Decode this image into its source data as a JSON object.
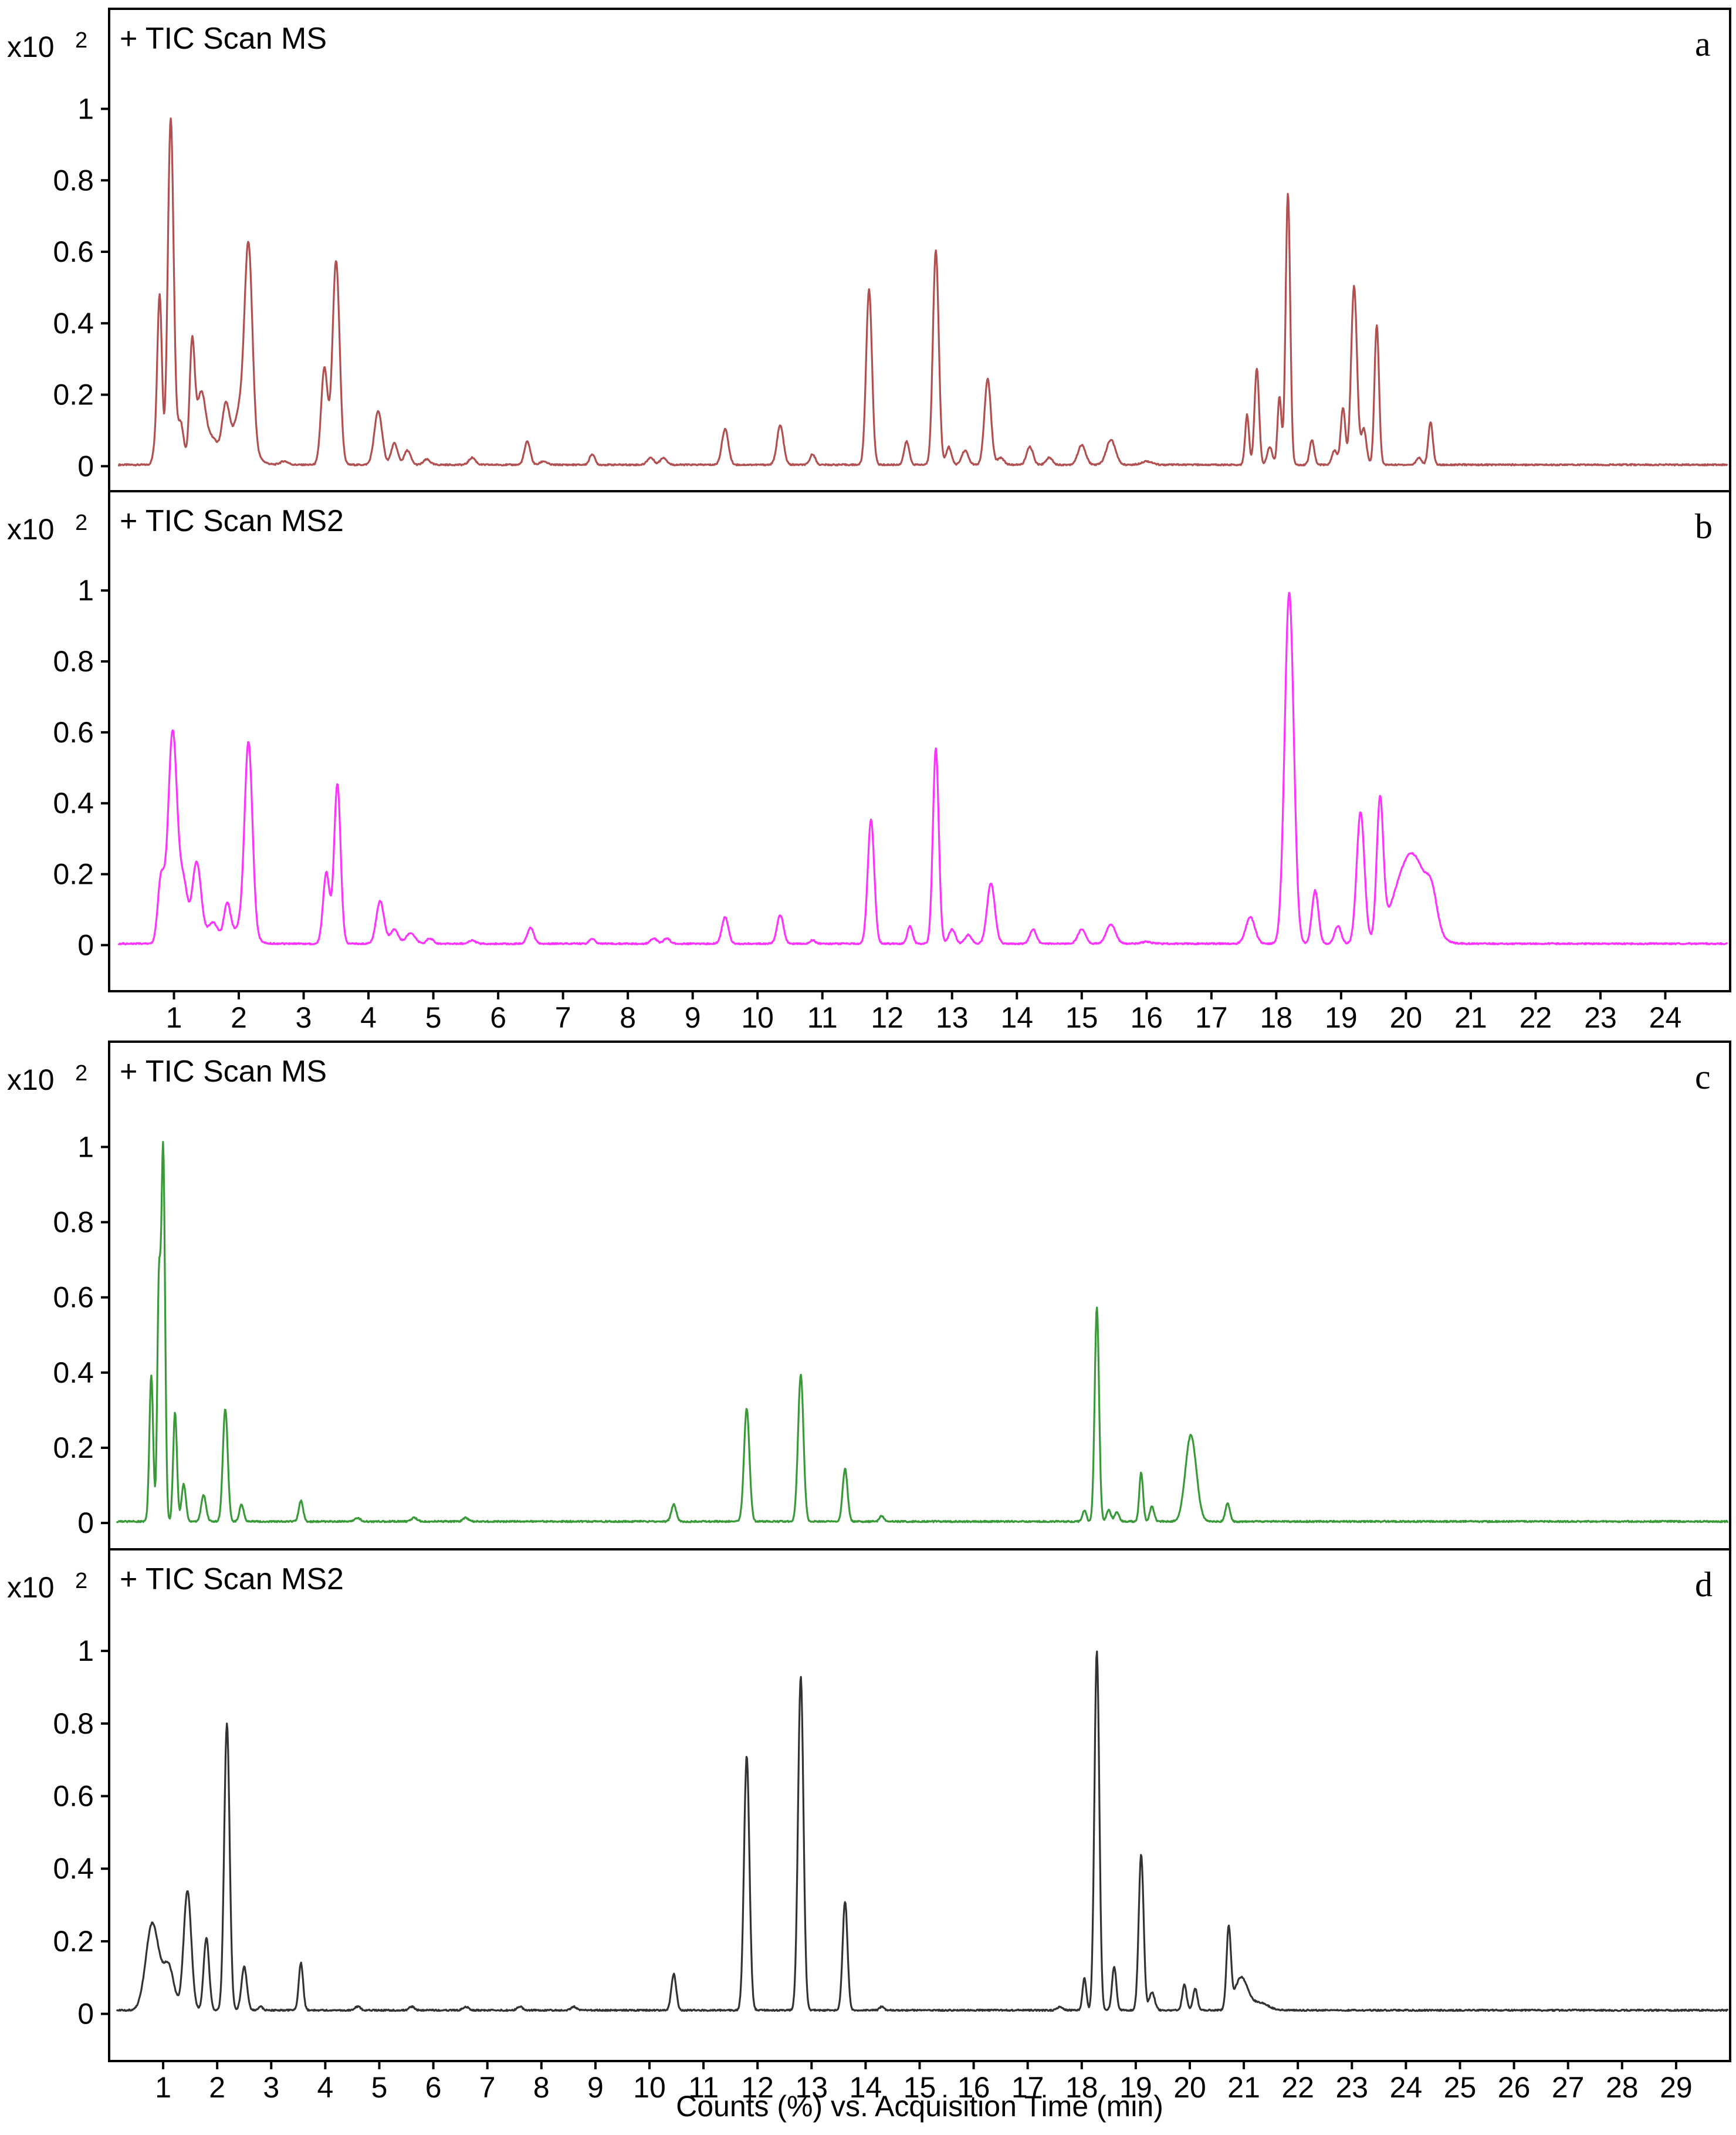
{
  "chart_data": [
    {
      "type": "line",
      "panel_letter": "a",
      "title": "+ TIC Scan MS",
      "y_multiplier": "x10",
      "y_exponent": "2",
      "ylim": [
        -0.07,
        1.28
      ],
      "y_ticks": [
        "0",
        "0.2",
        "0.4",
        "0.6",
        "0.8",
        "1"
      ],
      "xlim": [
        0,
        25
      ],
      "x_ticks": [],
      "color": "#b05050",
      "baseline": 0.004,
      "series": [
        {
          "peaks": [
            [
              0.72,
              0.05,
              0.04
            ],
            [
              0.78,
              0.46,
              0.035
            ],
            [
              0.95,
              0.97,
              0.045
            ],
            [
              1.1,
              0.12,
              0.05
            ],
            [
              1.28,
              0.33,
              0.04
            ],
            [
              1.42,
              0.2,
              0.07
            ],
            [
              1.6,
              0.07,
              0.08
            ],
            [
              1.8,
              0.16,
              0.06
            ],
            [
              2.0,
              0.1,
              0.08
            ],
            [
              2.15,
              0.55,
              0.06
            ],
            [
              2.1,
              0.06,
              0.15
            ],
            [
              2.7,
              0.01,
              0.06
            ],
            [
              3.32,
              0.27,
              0.05
            ],
            [
              3.5,
              0.57,
              0.055
            ],
            [
              4.15,
              0.15,
              0.06
            ],
            [
              4.4,
              0.06,
              0.05
            ],
            [
              4.6,
              0.04,
              0.05
            ],
            [
              4.9,
              0.015,
              0.05
            ],
            [
              5.6,
              0.02,
              0.05
            ],
            [
              6.45,
              0.065,
              0.045
            ],
            [
              6.7,
              0.01,
              0.05
            ],
            [
              7.45,
              0.03,
              0.04
            ],
            [
              8.35,
              0.02,
              0.05
            ],
            [
              8.55,
              0.02,
              0.05
            ],
            [
              9.5,
              0.1,
              0.05
            ],
            [
              10.35,
              0.11,
              0.05
            ],
            [
              10.85,
              0.03,
              0.04
            ],
            [
              11.72,
              0.49,
              0.045
            ],
            [
              12.3,
              0.065,
              0.04
            ],
            [
              12.75,
              0.6,
              0.045
            ],
            [
              12.95,
              0.05,
              0.04
            ],
            [
              13.2,
              0.04,
              0.05
            ],
            [
              13.55,
              0.24,
              0.05
            ],
            [
              13.75,
              0.02,
              0.05
            ],
            [
              14.2,
              0.05,
              0.05
            ],
            [
              14.5,
              0.02,
              0.05
            ],
            [
              15.0,
              0.055,
              0.06
            ],
            [
              15.45,
              0.07,
              0.07
            ],
            [
              16.0,
              0.01,
              0.08
            ],
            [
              17.55,
              0.14,
              0.03
            ],
            [
              17.7,
              0.27,
              0.035
            ],
            [
              17.9,
              0.05,
              0.04
            ],
            [
              18.05,
              0.19,
              0.03
            ],
            [
              18.18,
              0.76,
              0.035
            ],
            [
              18.55,
              0.07,
              0.035
            ],
            [
              18.9,
              0.04,
              0.04
            ],
            [
              19.03,
              0.16,
              0.035
            ],
            [
              19.2,
              0.5,
              0.045
            ],
            [
              19.35,
              0.1,
              0.04
            ],
            [
              19.55,
              0.39,
              0.035
            ],
            [
              20.2,
              0.02,
              0.04
            ],
            [
              20.38,
              0.12,
              0.035
            ]
          ]
        }
      ]
    },
    {
      "type": "line",
      "panel_letter": "b",
      "title": "+ TIC Scan MS2",
      "y_multiplier": "x10",
      "y_exponent": "2",
      "ylim": [
        -0.13,
        1.28
      ],
      "y_ticks": [
        "0",
        "0.2",
        "0.4",
        "0.6",
        "0.8",
        "1"
      ],
      "xlim": [
        0,
        25
      ],
      "x_ticks": [
        "1",
        "2",
        "3",
        "4",
        "5",
        "6",
        "7",
        "8",
        "9",
        "10",
        "11",
        "12",
        "13",
        "14",
        "15",
        "16",
        "17",
        "18",
        "19",
        "20",
        "21",
        "22",
        "23",
        "24"
      ],
      "color": "#ff33ff",
      "baseline": 0.004,
      "series": [
        {
          "peaks": [
            [
              0.8,
              0.18,
              0.05
            ],
            [
              0.98,
              0.6,
              0.07
            ],
            [
              1.15,
              0.16,
              0.06
            ],
            [
              1.35,
              0.23,
              0.07
            ],
            [
              1.6,
              0.06,
              0.08
            ],
            [
              1.82,
              0.1,
              0.05
            ],
            [
              2.15,
              0.53,
              0.06
            ],
            [
              2.05,
              0.05,
              0.15
            ],
            [
              3.35,
              0.2,
              0.05
            ],
            [
              3.52,
              0.45,
              0.05
            ],
            [
              4.18,
              0.12,
              0.06
            ],
            [
              4.4,
              0.04,
              0.06
            ],
            [
              4.65,
              0.03,
              0.07
            ],
            [
              4.95,
              0.015,
              0.05
            ],
            [
              5.6,
              0.01,
              0.05
            ],
            [
              6.5,
              0.045,
              0.05
            ],
            [
              7.45,
              0.015,
              0.04
            ],
            [
              8.4,
              0.015,
              0.05
            ],
            [
              8.6,
              0.015,
              0.05
            ],
            [
              9.5,
              0.075,
              0.05
            ],
            [
              10.35,
              0.08,
              0.05
            ],
            [
              10.85,
              0.01,
              0.04
            ],
            [
              11.75,
              0.35,
              0.05
            ],
            [
              12.35,
              0.05,
              0.04
            ],
            [
              12.75,
              0.55,
              0.045
            ],
            [
              13.0,
              0.04,
              0.05
            ],
            [
              13.25,
              0.025,
              0.05
            ],
            [
              13.6,
              0.17,
              0.06
            ],
            [
              14.25,
              0.04,
              0.05
            ],
            [
              15.0,
              0.04,
              0.06
            ],
            [
              15.45,
              0.055,
              0.07
            ],
            [
              16.0,
              0.005,
              0.08
            ],
            [
              17.6,
              0.075,
              0.07
            ],
            [
              18.2,
              0.99,
              0.07
            ],
            [
              18.6,
              0.15,
              0.05
            ],
            [
              18.95,
              0.05,
              0.05
            ],
            [
              19.3,
              0.37,
              0.06
            ],
            [
              19.6,
              0.38,
              0.05
            ],
            [
              20.15,
              0.2,
              0.2
            ],
            [
              20.4,
              0.08,
              0.08
            ],
            [
              19.9,
              0.1,
              0.2
            ]
          ]
        }
      ]
    },
    {
      "type": "line",
      "panel_letter": "c",
      "title": "+ TIC Scan MS",
      "y_multiplier": "x10",
      "y_exponent": "2",
      "ylim": [
        -0.07,
        1.28
      ],
      "y_ticks": [
        "0",
        "0.2",
        "0.4",
        "0.6",
        "0.8",
        "1"
      ],
      "xlim": [
        0,
        30
      ],
      "x_ticks": [],
      "color": "#3a9a3a",
      "baseline": 0.004,
      "series": [
        {
          "peaks": [
            [
              0.78,
              0.39,
              0.035
            ],
            [
              0.92,
              0.6,
              0.03
            ],
            [
              1.0,
              0.99,
              0.035
            ],
            [
              1.22,
              0.29,
              0.035
            ],
            [
              1.38,
              0.1,
              0.04
            ],
            [
              1.75,
              0.07,
              0.045
            ],
            [
              2.15,
              0.3,
              0.045
            ],
            [
              2.45,
              0.045,
              0.04
            ],
            [
              3.55,
              0.055,
              0.04
            ],
            [
              4.6,
              0.01,
              0.05
            ],
            [
              5.65,
              0.01,
              0.05
            ],
            [
              6.6,
              0.01,
              0.05
            ],
            [
              10.45,
              0.045,
              0.045
            ],
            [
              11.8,
              0.3,
              0.05
            ],
            [
              12.8,
              0.39,
              0.05
            ],
            [
              13.62,
              0.14,
              0.045
            ],
            [
              14.3,
              0.015,
              0.04
            ],
            [
              18.05,
              0.03,
              0.035
            ],
            [
              18.28,
              0.57,
              0.04
            ],
            [
              18.5,
              0.03,
              0.04
            ],
            [
              18.65,
              0.025,
              0.04
            ],
            [
              19.1,
              0.13,
              0.035
            ],
            [
              19.3,
              0.04,
              0.04
            ],
            [
              20.02,
              0.23,
              0.1
            ],
            [
              20.7,
              0.05,
              0.04
            ]
          ]
        }
      ]
    },
    {
      "type": "line",
      "panel_letter": "d",
      "title": "+ TIC Scan MS2",
      "y_multiplier": "x10",
      "y_exponent": "2",
      "ylim": [
        -0.13,
        1.28
      ],
      "y_ticks": [
        "0",
        "0.2",
        "0.4",
        "0.6",
        "0.8",
        "1"
      ],
      "xlim": [
        0,
        30
      ],
      "x_ticks": [
        "1",
        "2",
        "3",
        "4",
        "5",
        "6",
        "7",
        "8",
        "9",
        "10",
        "11",
        "12",
        "13",
        "14",
        "15",
        "16",
        "17",
        "18",
        "19",
        "20",
        "21",
        "22",
        "23",
        "24",
        "25",
        "26",
        "27",
        "28",
        "29"
      ],
      "xlabel": "Counts (%) vs. Acquisition Time (min)",
      "color": "#333333",
      "baseline": 0.01,
      "series": [
        {
          "peaks": [
            [
              0.8,
              0.24,
              0.12
            ],
            [
              1.1,
              0.12,
              0.1
            ],
            [
              1.45,
              0.33,
              0.07
            ],
            [
              1.8,
              0.2,
              0.05
            ],
            [
              2.18,
              0.79,
              0.05
            ],
            [
              2.5,
              0.12,
              0.05
            ],
            [
              2.8,
              0.01,
              0.04
            ],
            [
              3.55,
              0.13,
              0.04
            ],
            [
              4.6,
              0.01,
              0.05
            ],
            [
              5.6,
              0.01,
              0.05
            ],
            [
              6.6,
              0.01,
              0.05
            ],
            [
              7.6,
              0.01,
              0.05
            ],
            [
              8.6,
              0.01,
              0.05
            ],
            [
              10.45,
              0.1,
              0.045
            ],
            [
              11.8,
              0.7,
              0.05
            ],
            [
              12.8,
              0.92,
              0.05
            ],
            [
              13.62,
              0.3,
              0.045
            ],
            [
              14.3,
              0.01,
              0.04
            ],
            [
              17.6,
              0.01,
              0.05
            ],
            [
              18.05,
              0.09,
              0.035
            ],
            [
              18.28,
              0.99,
              0.045
            ],
            [
              18.6,
              0.12,
              0.04
            ],
            [
              19.1,
              0.43,
              0.045
            ],
            [
              19.3,
              0.05,
              0.05
            ],
            [
              19.9,
              0.07,
              0.04
            ],
            [
              20.1,
              0.06,
              0.04
            ],
            [
              20.72,
              0.22,
              0.04
            ],
            [
              20.95,
              0.09,
              0.12
            ],
            [
              21.3,
              0.02,
              0.15
            ]
          ]
        }
      ]
    }
  ]
}
